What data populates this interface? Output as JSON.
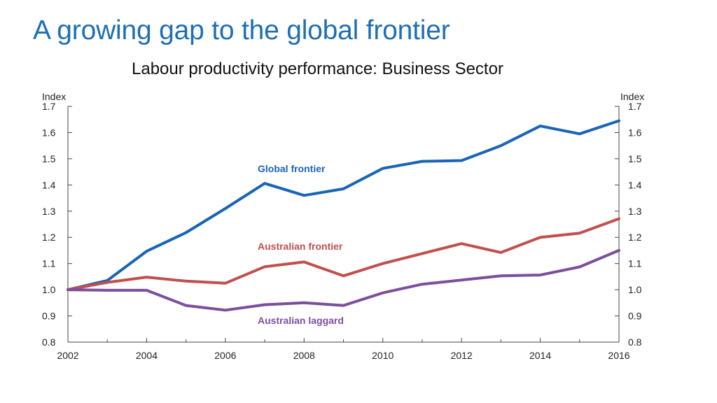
{
  "slide": {
    "title": "A growing gap to the global frontier"
  },
  "chart_data": {
    "type": "line",
    "title": "Labour productivity performance: Business Sector",
    "ylabel_left": "Index",
    "ylabel_right": "Index",
    "ylim": [
      0.8,
      1.7
    ],
    "yticks": [
      "1.7",
      "1.6",
      "1.5",
      "1.4",
      "1.3",
      "1.2",
      "1.1",
      "1.0",
      "0.9",
      "0.8"
    ],
    "xlim": [
      2002,
      2016
    ],
    "xticks": [
      "2002",
      "2004",
      "2006",
      "2008",
      "2010",
      "2012",
      "2014",
      "2016"
    ],
    "grid": false,
    "x": [
      2002,
      2003,
      2004,
      2005,
      2006,
      2007,
      2008,
      2009,
      2010,
      2011,
      2012,
      2013,
      2014,
      2015,
      2016
    ],
    "series": [
      {
        "name": "Global frontier",
        "color": "#1a64b8",
        "values": [
          1.0,
          1.035,
          1.147,
          1.218,
          1.31,
          1.406,
          1.36,
          1.385,
          1.463,
          1.49,
          1.493,
          1.55,
          1.625,
          1.595,
          1.645
        ]
      },
      {
        "name": "Australian frontier",
        "color": "#c0504d",
        "values": [
          1.0,
          1.028,
          1.048,
          1.033,
          1.025,
          1.088,
          1.106,
          1.053,
          1.1,
          1.138,
          1.176,
          1.142,
          1.2,
          1.216,
          1.271
        ]
      },
      {
        "name": "Australian laggard",
        "color": "#7d4e9e",
        "values": [
          1.0,
          0.998,
          0.998,
          0.94,
          0.922,
          0.943,
          0.95,
          0.94,
          0.988,
          1.021,
          1.037,
          1.053,
          1.056,
          1.087,
          1.15
        ]
      }
    ]
  }
}
